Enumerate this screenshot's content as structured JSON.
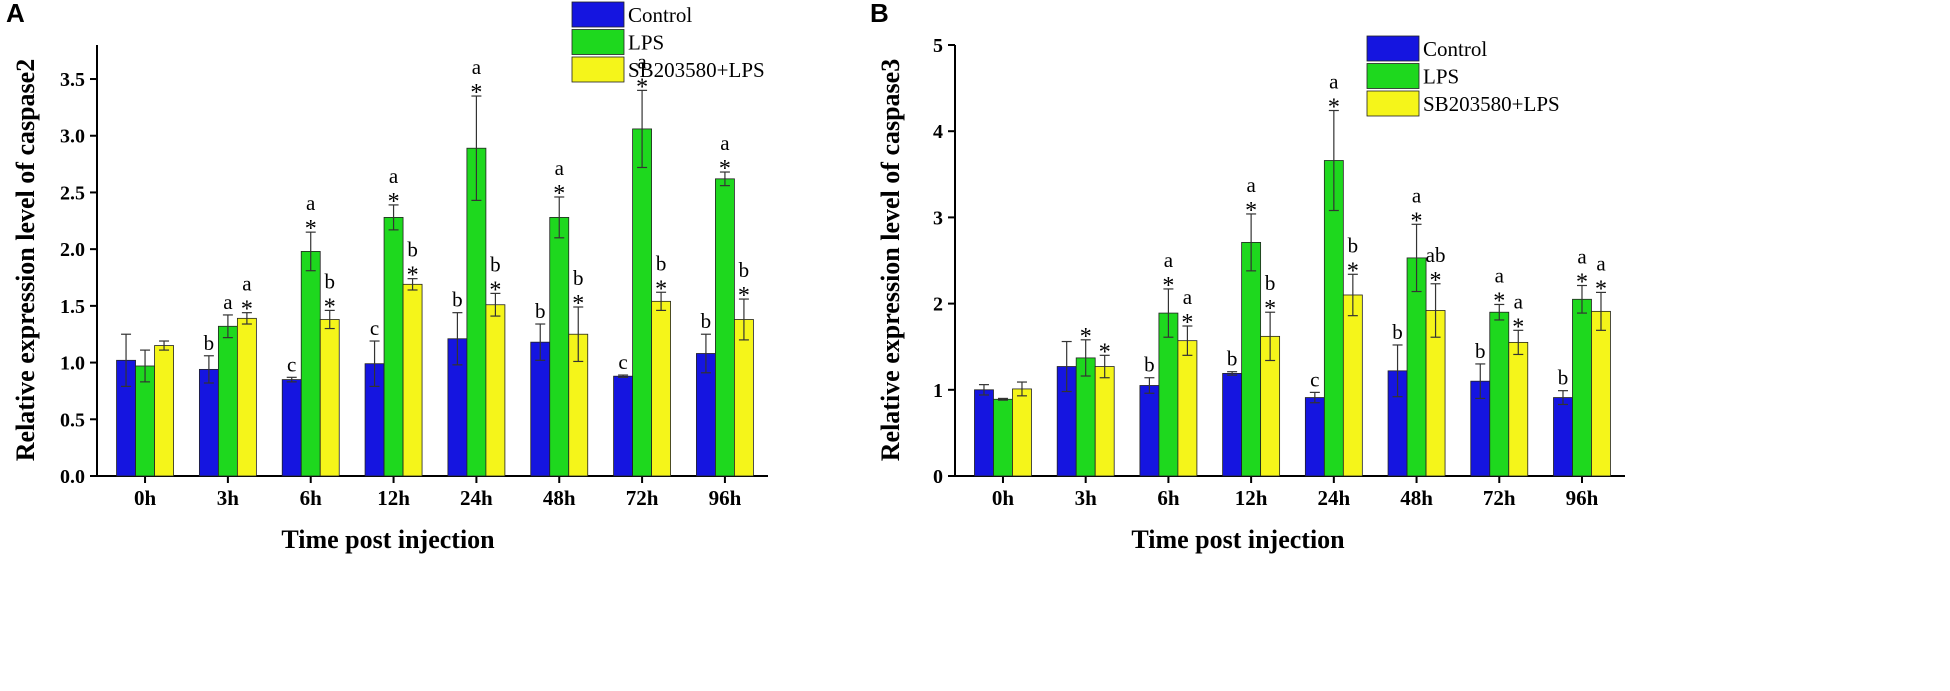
{
  "colors": {
    "Control": "#1515e0",
    "LPS": "#1ed81e",
    "SB203580+LPS": "#f5f51a"
  },
  "chart_data": [
    {
      "panel": "A",
      "type": "bar",
      "xlabel": "Time post injection",
      "ylabel": "Relative expression level of caspase2",
      "ylim": [
        0,
        3.8
      ],
      "yticks": [
        "0.0",
        "0.5",
        "1.0",
        "1.5",
        "2.0",
        "2.5",
        "3.0",
        "3.5"
      ],
      "categories": [
        "0h",
        "3h",
        "6h",
        "12h",
        "24h",
        "48h",
        "72h",
        "96h"
      ],
      "series": [
        {
          "name": "Control",
          "values": [
            1.02,
            0.94,
            0.85,
            0.99,
            1.21,
            1.18,
            0.88,
            1.08
          ],
          "errors": [
            0.23,
            0.12,
            0.02,
            0.2,
            0.23,
            0.16,
            0.01,
            0.17
          ],
          "labels": [
            "",
            "b",
            "c",
            "c",
            "b",
            "b",
            "c",
            "b"
          ],
          "stars": [
            false,
            false,
            false,
            false,
            false,
            false,
            false,
            false
          ]
        },
        {
          "name": "LPS",
          "values": [
            0.97,
            1.32,
            1.98,
            2.28,
            2.89,
            2.28,
            3.06,
            2.62
          ],
          "errors": [
            0.14,
            0.1,
            0.17,
            0.11,
            0.46,
            0.18,
            0.34,
            0.06
          ],
          "labels": [
            "",
            "a",
            "a",
            "a",
            "a",
            "a",
            "a",
            "a"
          ],
          "stars": [
            false,
            false,
            true,
            true,
            true,
            true,
            true,
            true
          ]
        },
        {
          "name": "SB203580+LPS",
          "values": [
            1.15,
            1.39,
            1.38,
            1.69,
            1.51,
            1.25,
            1.54,
            1.38
          ],
          "errors": [
            0.04,
            0.05,
            0.08,
            0.05,
            0.1,
            0.24,
            0.08,
            0.18
          ],
          "labels": [
            "",
            "a",
            "b",
            "b",
            "b",
            "b",
            "b",
            "b"
          ],
          "stars": [
            false,
            true,
            true,
            true,
            true,
            true,
            true,
            true
          ]
        }
      ],
      "legend": [
        "Control",
        "LPS",
        "SB203580+LPS"
      ]
    },
    {
      "panel": "B",
      "type": "bar",
      "xlabel": "Time post injection",
      "ylabel": "Relative expression level of caspase3",
      "ylim": [
        0,
        5
      ],
      "yticks": [
        "0",
        "1",
        "2",
        "3",
        "4",
        "5"
      ],
      "categories": [
        "0h",
        "3h",
        "6h",
        "12h",
        "24h",
        "48h",
        "72h",
        "96h"
      ],
      "series": [
        {
          "name": "Control",
          "values": [
            1.0,
            1.27,
            1.05,
            1.19,
            0.91,
            1.22,
            1.1,
            0.91
          ],
          "errors": [
            0.06,
            0.29,
            0.09,
            0.02,
            0.06,
            0.3,
            0.2,
            0.08
          ],
          "labels": [
            "",
            "",
            "b",
            "b",
            "c",
            "b",
            "b",
            "b"
          ],
          "stars": [
            false,
            false,
            false,
            false,
            false,
            false,
            false,
            false
          ]
        },
        {
          "name": "LPS",
          "values": [
            0.89,
            1.37,
            1.89,
            2.71,
            3.66,
            2.53,
            1.9,
            2.05
          ],
          "errors": [
            0.01,
            0.21,
            0.28,
            0.33,
            0.58,
            0.39,
            0.09,
            0.16
          ],
          "labels": [
            "",
            "",
            "a",
            "a",
            "a",
            "a",
            "a",
            "a"
          ],
          "stars": [
            false,
            true,
            true,
            true,
            true,
            true,
            true,
            true
          ]
        },
        {
          "name": "SB203580+LPS",
          "values": [
            1.01,
            1.27,
            1.57,
            1.62,
            2.1,
            1.92,
            1.55,
            1.91
          ],
          "errors": [
            0.08,
            0.13,
            0.17,
            0.28,
            0.24,
            0.31,
            0.14,
            0.22
          ],
          "labels": [
            "",
            "",
            "a",
            "b",
            "b",
            "ab",
            "a",
            "a"
          ],
          "stars": [
            false,
            true,
            true,
            true,
            true,
            true,
            true,
            true
          ]
        }
      ],
      "legend": [
        "Control",
        "LPS",
        "SB203580+LPS"
      ]
    }
  ]
}
